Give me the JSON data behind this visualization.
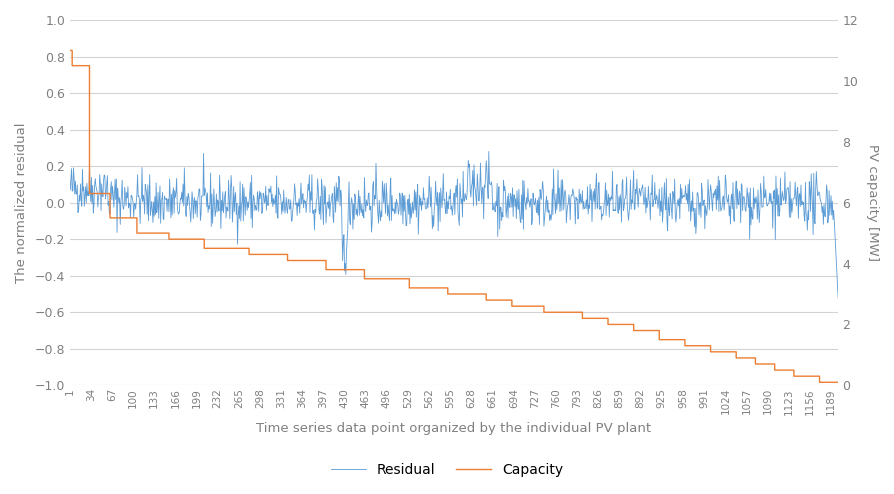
{
  "title": "",
  "xlabel": "Time series data point organized by the individual PV plant",
  "ylabel_left": "The normalized residual",
  "ylabel_right": "PV capacity [MW]",
  "ylim_left": [
    -1,
    1
  ],
  "ylim_right": [
    0,
    12
  ],
  "yticks_left": [
    -1,
    -0.8,
    -0.6,
    -0.4,
    -0.2,
    0,
    0.2,
    0.4,
    0.6,
    0.8,
    1
  ],
  "yticks_right": [
    0,
    2,
    4,
    6,
    8,
    10,
    12
  ],
  "xtick_labels": [
    "1",
    "34",
    "67",
    "100",
    "133",
    "166",
    "199",
    "232",
    "265",
    "298",
    "331",
    "364",
    "397",
    "430",
    "463",
    "496",
    "529",
    "562",
    "595",
    "628",
    "661",
    "694",
    "727",
    "760",
    "793",
    "826",
    "859",
    "892",
    "925",
    "958",
    "991",
    "1024",
    "1057",
    "1090",
    "1123",
    "1156",
    "1189"
  ],
  "residual_color": "#5B9BD5",
  "capacity_color": "#ED7D31",
  "legend_residual": "Residual",
  "legend_capacity": "Capacity",
  "background_color": "#ffffff",
  "grid_color": "#d3d3d3",
  "n_points": 1200,
  "residual_seed": 42,
  "residual_scale": 0.07,
  "capacity_breakpoints": [
    [
      0,
      11.0
    ],
    [
      3,
      11.0
    ],
    [
      4,
      10.5
    ],
    [
      30,
      10.5
    ],
    [
      31,
      6.3
    ],
    [
      60,
      6.3
    ],
    [
      63,
      5.5
    ],
    [
      100,
      5.5
    ],
    [
      105,
      5.0
    ],
    [
      150,
      5.0
    ],
    [
      155,
      4.8
    ],
    [
      200,
      4.8
    ],
    [
      210,
      4.5
    ],
    [
      270,
      4.5
    ],
    [
      280,
      4.3
    ],
    [
      330,
      4.3
    ],
    [
      340,
      4.1
    ],
    [
      390,
      4.1
    ],
    [
      400,
      3.8
    ],
    [
      450,
      3.8
    ],
    [
      460,
      3.5
    ],
    [
      520,
      3.5
    ],
    [
      530,
      3.2
    ],
    [
      580,
      3.2
    ],
    [
      590,
      3.0
    ],
    [
      640,
      3.0
    ],
    [
      650,
      2.8
    ],
    [
      680,
      2.8
    ],
    [
      690,
      2.6
    ],
    [
      730,
      2.6
    ],
    [
      740,
      2.4
    ],
    [
      790,
      2.4
    ],
    [
      800,
      2.2
    ],
    [
      830,
      2.2
    ],
    [
      840,
      2.0
    ],
    [
      870,
      2.0
    ],
    [
      880,
      1.8
    ],
    [
      910,
      1.8
    ],
    [
      920,
      1.5
    ],
    [
      950,
      1.5
    ],
    [
      960,
      1.3
    ],
    [
      990,
      1.3
    ],
    [
      1000,
      1.1
    ],
    [
      1030,
      1.1
    ],
    [
      1040,
      0.9
    ],
    [
      1060,
      0.9
    ],
    [
      1070,
      0.7
    ],
    [
      1090,
      0.7
    ],
    [
      1100,
      0.5
    ],
    [
      1120,
      0.5
    ],
    [
      1130,
      0.3
    ],
    [
      1160,
      0.3
    ],
    [
      1170,
      0.1
    ],
    [
      1199,
      0.1
    ]
  ]
}
